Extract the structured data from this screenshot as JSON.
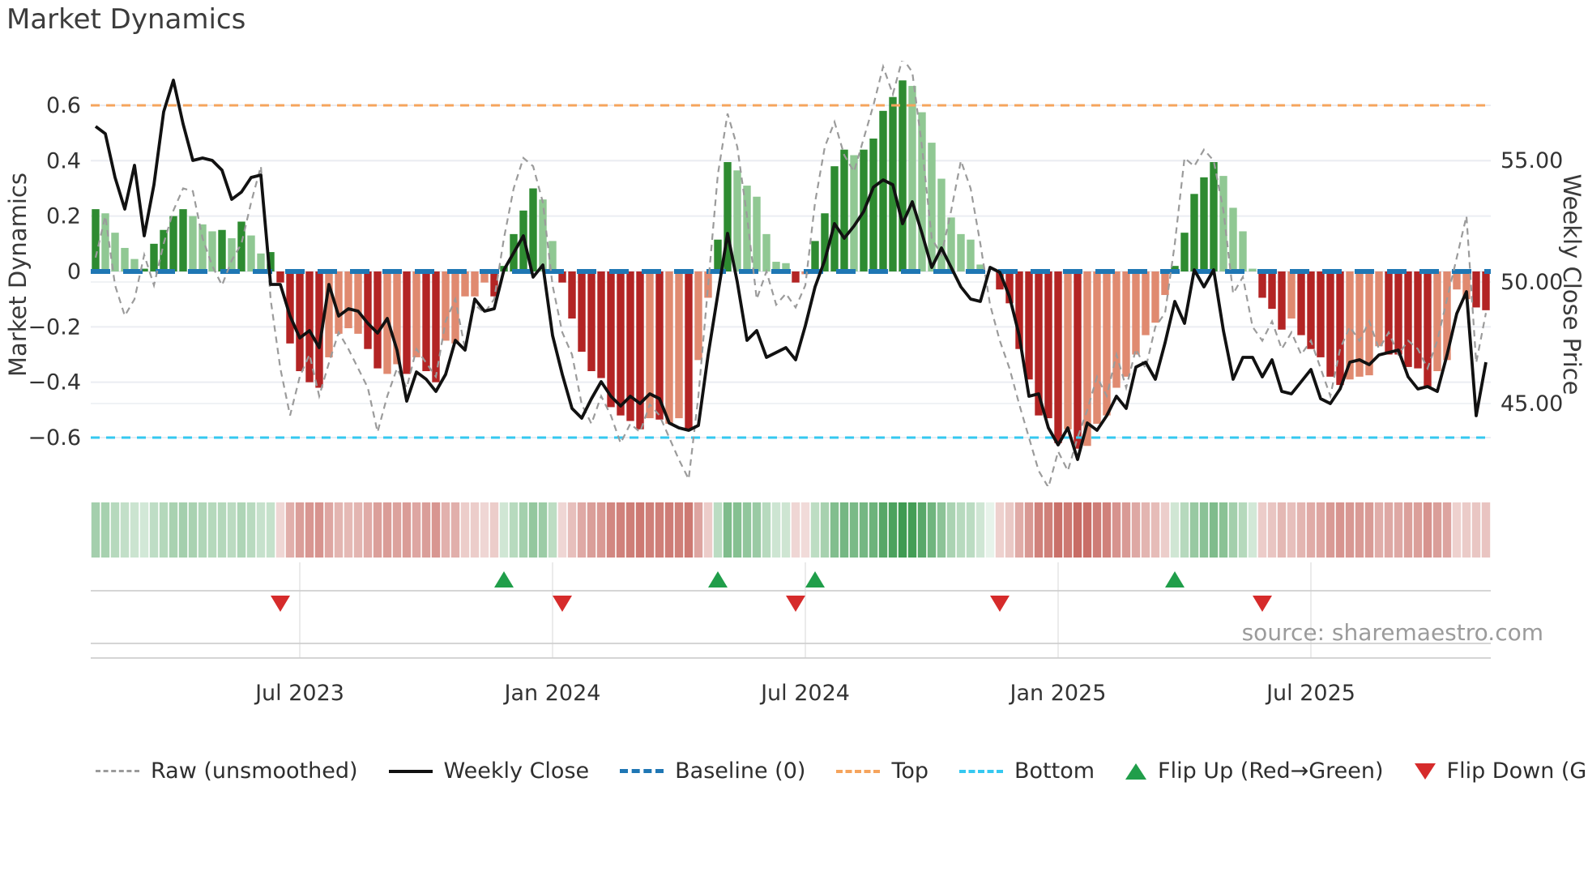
{
  "page": {
    "title": "Market Dynamics",
    "source": "source: sharemaestro.com"
  },
  "chart_data": {
    "type": "bar",
    "subtype": "weekly oscillator bars + price line overlay + heatmap strip + flip markers",
    "y_left": {
      "label": "Market Dynamics",
      "ticks": [
        0.6,
        0.4,
        0.2,
        0,
        -0.2,
        -0.4,
        -0.6
      ],
      "range": [
        -0.78,
        0.79
      ]
    },
    "y_right": {
      "label": "Weekly Close Price",
      "ticks": [
        55,
        50,
        45
      ],
      "tick_labels": [
        "55.00",
        "50.00",
        "45.00"
      ],
      "range": [
        41.5,
        59.0
      ]
    },
    "x_ticks": [
      {
        "label": "Jul 2023",
        "week": 21
      },
      {
        "label": "Jan 2024",
        "week": 47
      },
      {
        "label": "Jul 2024",
        "week": 73
      },
      {
        "label": "Jan 2025",
        "week": 99
      },
      {
        "label": "Jul 2025",
        "week": 125
      }
    ],
    "top_level": 0.6,
    "bottom_level": -0.6,
    "baseline_level": 0,
    "oscillator": [
      0.225,
      0.21,
      0.14,
      0.085,
      0.045,
      0.01,
      0.1,
      0.15,
      0.2,
      0.225,
      0.2,
      0.17,
      0.145,
      0.15,
      0.12,
      0.18,
      0.13,
      0.065,
      0.07,
      -0.04,
      -0.26,
      -0.36,
      -0.4,
      -0.42,
      -0.31,
      -0.225,
      -0.205,
      -0.225,
      -0.28,
      -0.35,
      -0.37,
      -0.335,
      -0.37,
      -0.31,
      -0.36,
      -0.4,
      -0.25,
      -0.26,
      -0.09,
      -0.09,
      -0.04,
      -0.09,
      0.02,
      0.135,
      0.22,
      0.3,
      0.26,
      0.11,
      -0.04,
      -0.17,
      -0.29,
      -0.36,
      -0.385,
      -0.49,
      -0.52,
      -0.54,
      -0.57,
      -0.53,
      -0.535,
      -0.55,
      -0.53,
      -0.57,
      -0.32,
      -0.095,
      0.115,
      0.395,
      0.365,
      0.31,
      0.27,
      0.135,
      0.035,
      0.03,
      -0.04,
      -0.01,
      0.11,
      0.21,
      0.38,
      0.44,
      0.42,
      0.44,
      0.48,
      0.58,
      0.63,
      0.69,
      0.67,
      0.575,
      0.465,
      0.335,
      0.195,
      0.135,
      0.115,
      0.025,
      0,
      -0.065,
      -0.115,
      -0.28,
      -0.39,
      -0.52,
      -0.53,
      -0.62,
      -0.57,
      -0.64,
      -0.63,
      -0.55,
      -0.52,
      -0.42,
      -0.38,
      -0.3,
      -0.23,
      -0.185,
      -0.085,
      0.02,
      0.14,
      0.28,
      0.34,
      0.395,
      0.345,
      0.23,
      0.145,
      0.01,
      -0.095,
      -0.135,
      -0.21,
      -0.17,
      -0.23,
      -0.28,
      -0.31,
      -0.38,
      -0.41,
      -0.39,
      -0.38,
      -0.375,
      -0.27,
      -0.3,
      -0.3,
      -0.345,
      -0.35,
      -0.42,
      -0.36,
      -0.32,
      -0.065,
      -0.1,
      -0.13,
      -0.14
    ],
    "tones": "dllllddddtllldldllddddddllllddlldlddllllldddddllddddddddddldlldllddllllllldddddldddddllllllll0dddddddldllllllllllddddd llll dddldddddllllddddd lllllldd",
    "tone_string": "dlllldddddllldldllddddddlllldd lldlddllll ldddddlldd dddddddldl ldllddllll lldlddddld ddddllllll ll0ddddddd ldllllllll ldddddllll dddldddddl lllddddd ll lldd",
    "tone_rows": [
      "dllllddddd",
      "llldldlldd",
      "ddddlllldd",
      "lldlddllll",
      "ldddddlldd",
      "dddddddldl",
      "ldllddllll",
      "lldlddddld",
      "ddddllllll",
      "ll0ddddddd",
      "ldllllllll",
      "ldddddllll",
      "dddldddddl",
      "llldddddll",
      "lldd"
    ],
    "weekly_close": [
      56.4,
      56.1,
      54.3,
      53.0,
      54.8,
      51.9,
      54.0,
      57.0,
      58.3,
      56.5,
      55.0,
      55.1,
      55.0,
      54.6,
      53.4,
      53.7,
      54.3,
      54.4,
      49.9,
      49.9,
      48.6,
      47.7,
      48.0,
      47.3,
      49.9,
      48.6,
      48.9,
      48.8,
      48.3,
      47.9,
      48.5,
      47.2,
      45.1,
      46.3,
      46.0,
      45.5,
      46.2,
      47.6,
      47.2,
      49.3,
      48.8,
      48.9,
      50.5,
      51.2,
      51.9,
      50.2,
      50.7,
      47.8,
      46.2,
      44.8,
      44.4,
      45.2,
      45.9,
      45.3,
      44.9,
      45.3,
      45.0,
      45.4,
      45.2,
      44.2,
      44.0,
      43.9,
      44.1,
      47.0,
      49.5,
      52.0,
      50.0,
      47.6,
      48.0,
      46.9,
      47.1,
      47.3,
      46.8,
      48.2,
      49.8,
      50.9,
      52.4,
      51.8,
      52.3,
      52.9,
      53.9,
      54.2,
      54.0,
      52.4,
      53.3,
      52.0,
      50.6,
      51.4,
      50.6,
      49.8,
      49.3,
      49.2,
      50.6,
      50.4,
      49.4,
      47.8,
      45.3,
      45.4,
      44.0,
      43.3,
      44.0,
      42.7,
      44.2,
      43.9,
      44.5,
      45.3,
      44.8,
      46.5,
      46.7,
      46.0,
      47.5,
      49.2,
      48.3,
      50.5,
      49.8,
      50.5,
      48.0,
      46.0,
      46.9,
      46.9,
      46.1,
      46.8,
      45.5,
      45.4,
      45.9,
      46.4,
      45.2,
      45.0,
      45.6,
      46.7,
      46.8,
      46.6,
      47.0,
      47.1,
      47.2,
      46.1,
      45.6,
      45.7,
      45.5,
      47.0,
      48.7,
      49.6,
      44.5,
      46.7
    ],
    "raw": [
      0.05,
      0.2,
      -0.05,
      -0.16,
      -0.1,
      0.06,
      -0.05,
      0.1,
      0.22,
      0.3,
      0.29,
      0.12,
      0.02,
      -0.05,
      0.04,
      0.1,
      0.25,
      0.38,
      -0.1,
      -0.35,
      -0.52,
      -0.38,
      -0.3,
      -0.45,
      -0.33,
      -0.22,
      -0.28,
      -0.35,
      -0.42,
      -0.58,
      -0.45,
      -0.35,
      -0.42,
      -0.28,
      -0.33,
      -0.38,
      -0.18,
      -0.1,
      -0.28,
      -0.12,
      -0.15,
      -0.1,
      0.12,
      0.3,
      0.41,
      0.38,
      0.25,
      -0.05,
      -0.22,
      -0.3,
      -0.48,
      -0.55,
      -0.45,
      -0.52,
      -0.62,
      -0.55,
      -0.58,
      -0.48,
      -0.52,
      -0.6,
      -0.68,
      -0.75,
      -0.45,
      -0.05,
      0.35,
      0.57,
      0.45,
      0.2,
      -0.1,
      0.0,
      -0.12,
      -0.08,
      -0.13,
      -0.05,
      0.25,
      0.45,
      0.54,
      0.42,
      0.36,
      0.48,
      0.6,
      0.74,
      0.64,
      0.77,
      0.72,
      0.45,
      0.12,
      0.06,
      0.22,
      0.4,
      0.3,
      0.1,
      -0.12,
      -0.25,
      -0.35,
      -0.48,
      -0.6,
      -0.72,
      -0.78,
      -0.65,
      -0.72,
      -0.6,
      -0.5,
      -0.38,
      -0.45,
      -0.3,
      -0.42,
      -0.28,
      -0.35,
      -0.2,
      -0.15,
      0.1,
      0.41,
      0.38,
      0.44,
      0.4,
      0.22,
      -0.08,
      -0.02,
      -0.2,
      -0.25,
      -0.18,
      -0.28,
      -0.22,
      -0.3,
      -0.25,
      -0.35,
      -0.45,
      -0.28,
      -0.2,
      -0.25,
      -0.18,
      -0.28,
      -0.22,
      -0.3,
      -0.25,
      -0.28,
      -0.35,
      -0.25,
      -0.1,
      0.05,
      0.2,
      -0.33,
      -0.15
    ],
    "flip_up_weeks": [
      42,
      64,
      74,
      111
    ],
    "flip_down_weeks": [
      19,
      48,
      72,
      93,
      120
    ],
    "colors": {
      "bar_dark_green": "#2e8b31",
      "bar_light_green": "#90c893",
      "bar_dark_red": "#b32424",
      "bar_light_red": "#e08a70",
      "top_line": "#f5a45d",
      "bottom_line": "#35c8f0",
      "baseline": "#1f77b4",
      "close_line": "#111111",
      "raw_line": "#9b9b9b",
      "flip_up": "#209e4a",
      "flip_down": "#d62b2b",
      "grid": "#ebedf2",
      "panel_line": "#cfcfcf",
      "heat_green": "#3d9a50",
      "heat_red": "#c4625a"
    },
    "legend": [
      {
        "label": "Raw (unsmoothed)",
        "swatch": "raw"
      },
      {
        "label": "Weekly Close",
        "swatch": "close"
      },
      {
        "label": "Baseline (0)",
        "swatch": "base"
      },
      {
        "label": "Top",
        "swatch": "top"
      },
      {
        "label": "Bottom",
        "swatch": "bottom"
      },
      {
        "label": "Flip Up (Red→Green)",
        "swatch": "tri-up"
      },
      {
        "label": "Flip Down (Green→Red)",
        "swatch": "tri-down"
      }
    ]
  }
}
